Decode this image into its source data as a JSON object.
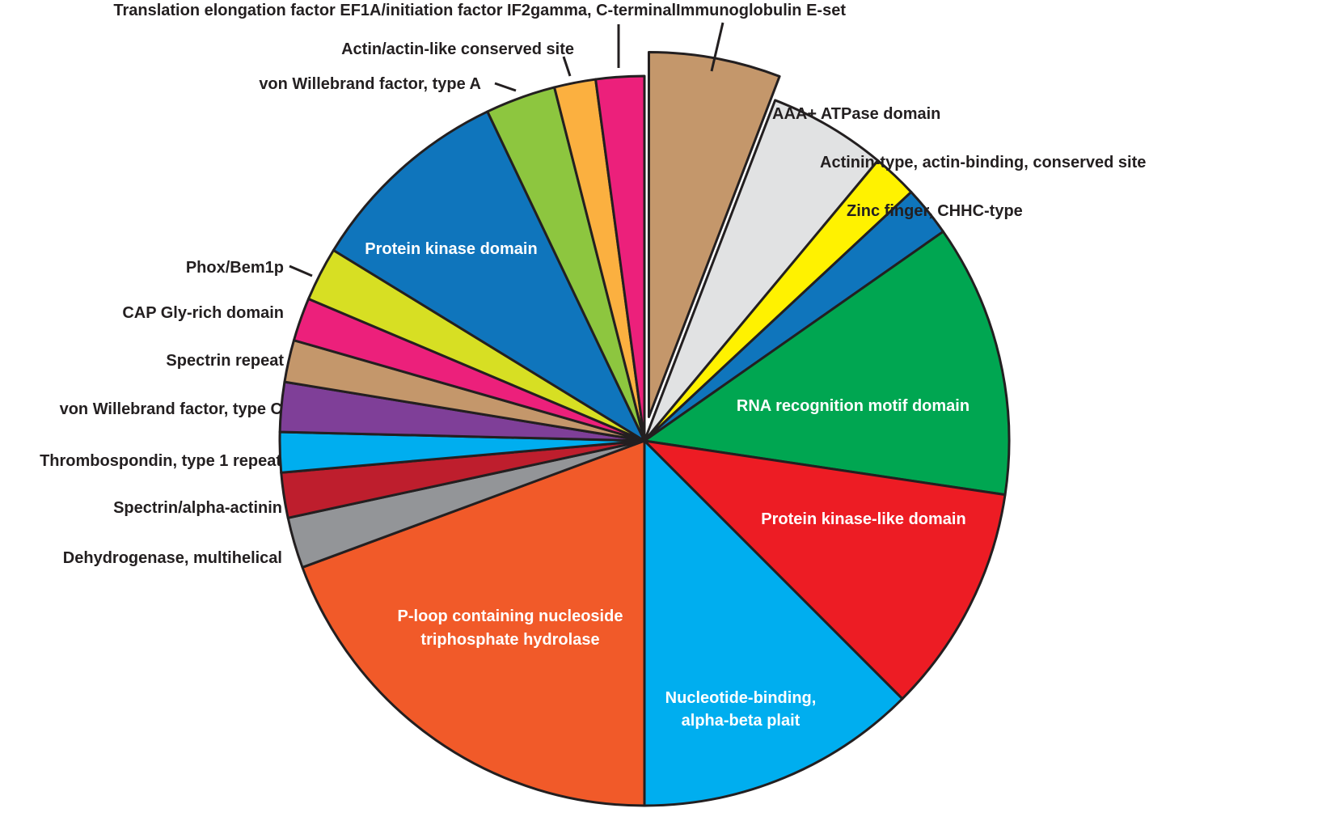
{
  "chart_data": {
    "type": "pie",
    "title": "",
    "start_angle_deg": 0,
    "direction": "clockwise",
    "units": "approx. percent of total (estimated from slice angles)",
    "exploded": [
      "Immunoglobulin E-set"
    ],
    "slices": [
      {
        "label": "Immunoglobulin E-set",
        "value": 5.8,
        "start": 0,
        "end": 21,
        "color": "#c4976b",
        "label_pos": "outside"
      },
      {
        "label": "AAA+ ATPase domain",
        "value": 5.3,
        "start": 21,
        "end": 39.8,
        "color": "#e1e2e3",
        "label_pos": "outside"
      },
      {
        "label": "Actinin-type, actin-binding, conserved site",
        "value": 2.0,
        "start": 39.8,
        "end": 47,
        "color": "#fff200",
        "label_pos": "outside"
      },
      {
        "label": "Zinc finger, CHHC-type",
        "value": 2.2,
        "start": 47,
        "end": 55,
        "color": "#0f75bc",
        "label_pos": "outside"
      },
      {
        "label": "RNA recognition motif domain",
        "value": 12.1,
        "start": 55,
        "end": 98.5,
        "color": "#00a651",
        "label_pos": "inside"
      },
      {
        "label": "Protein kinase-like domain",
        "value": 10.1,
        "start": 98.5,
        "end": 135,
        "color": "#ed1c24",
        "label_pos": "inside"
      },
      {
        "label": "Nucleotide-binding, alpha-beta plait",
        "value": 12.5,
        "start": 135,
        "end": 180,
        "color": "#00aeef",
        "label_pos": "inside"
      },
      {
        "label": "P-loop containing nucleoside triphosphate hydrolase",
        "value": 19.4,
        "start": 180,
        "end": 249.7,
        "color": "#f15a29",
        "label_pos": "inside"
      },
      {
        "label": "Dehydrogenase, multihelical",
        "value": 2.3,
        "start": 249.7,
        "end": 257.8,
        "color": "#939598",
        "label_pos": "outside"
      },
      {
        "label": "Spectrin/alpha-actinin",
        "value": 2.0,
        "start": 257.8,
        "end": 265,
        "color": "#be1e2d",
        "label_pos": "outside"
      },
      {
        "label": "Thrombospondin, type 1 repeat",
        "value": 1.8,
        "start": 265,
        "end": 271.4,
        "color": "#00aeef",
        "label_pos": "outside"
      },
      {
        "label": "von Willebrand factor, type C",
        "value": 2.2,
        "start": 271.4,
        "end": 279.3,
        "color": "#7f3f98",
        "label_pos": "outside"
      },
      {
        "label": "Spectrin repeat",
        "value": 1.9,
        "start": 279.3,
        "end": 286,
        "color": "#c4976b",
        "label_pos": "outside"
      },
      {
        "label": "CAP Gly-rich domain",
        "value": 1.9,
        "start": 286,
        "end": 292.9,
        "color": "#ec207b",
        "label_pos": "outside"
      },
      {
        "label": "Phox/Bem1p",
        "value": 2.4,
        "start": 292.9,
        "end": 301.5,
        "color": "#d7df23",
        "label_pos": "outside"
      },
      {
        "label": "Protein kinase domain",
        "value": 9.1,
        "start": 301.5,
        "end": 334.5,
        "color": "#0f75bc",
        "label_pos": "inside"
      },
      {
        "label": "von Willebrand factor, type A",
        "value": 3.1,
        "start": 334.5,
        "end": 345.7,
        "color": "#8dc63f",
        "label_pos": "outside"
      },
      {
        "label": "Actin/actin-like conserved site",
        "value": 1.8,
        "start": 345.7,
        "end": 352.3,
        "color": "#fbb040",
        "label_pos": "outside"
      },
      {
        "label": "Translation elongation factor EF1A/initiation factor IF2gamma, C-terminal",
        "value": 2.1,
        "start": 352.3,
        "end": 360,
        "color": "#ec207b",
        "label_pos": "outside"
      }
    ],
    "legend": "none (direct labels)",
    "grid": false
  },
  "labels": {
    "imm": "Immunoglobulin E-set",
    "aaa": "AAA+ ATPase domain",
    "actinin": "Actinin-type, actin-binding, conserved site",
    "zinc": "Zinc finger, CHHC-type",
    "rrm": "RNA recognition motif domain",
    "pkl": "Protein kinase-like domain",
    "nb1": "Nucleotide-binding,",
    "nb2": "alpha-beta plait",
    "ploop1": "P-loop containing nucleoside",
    "ploop2": "triphosphate hydrolase",
    "dehyd": "Dehydrogenase, multihelical",
    "spa": "Spectrin/alpha-actinin",
    "thromb": "Thrombospondin, type 1 repeat",
    "vwfc": "von Willebrand factor, type C",
    "specrep": "Spectrin repeat",
    "capgly": "CAP Gly-rich domain",
    "phox": "Phox/Bem1p",
    "pkd": "Protein kinase domain",
    "vwfa": "von Willebrand factor, type A",
    "actin": "Actin/actin-like conserved site",
    "tef": "Translation elongation factor EF1A/initiation factor IF2gamma, C-terminal"
  }
}
